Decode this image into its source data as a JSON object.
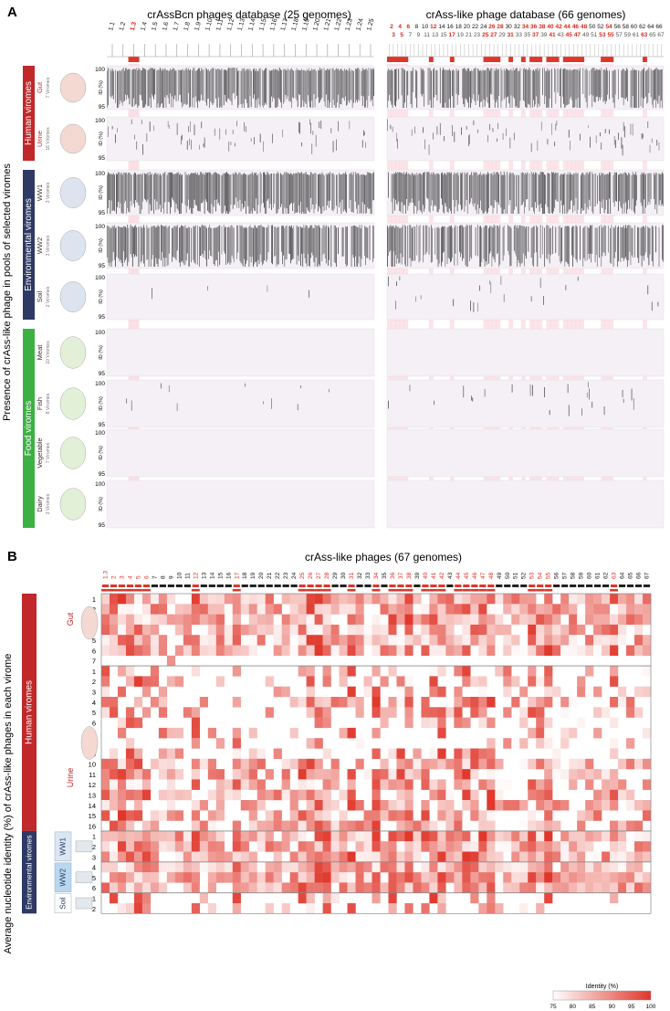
{
  "panel_a": {
    "label": "A",
    "y_axis_title": "Presence of crAss-like phage in pools of selected viromes",
    "db1_title": "crAssBcn phages database (25 genomes)",
    "db2_title": "crAss-like phage database (66 genomes)",
    "db1_labels": [
      "1.1",
      "1.2",
      "1.3",
      "1.4",
      "1.5",
      "1.6",
      "1.7",
      "1.8",
      "1.9",
      "1.10",
      "1.11",
      "1.12",
      "1.13",
      "1.14",
      "1.15",
      "1.16",
      "1.17",
      "1.18",
      "1.19",
      "1.20",
      "1.21",
      "1.22",
      "1.23",
      "1.24",
      "1.25"
    ],
    "db1_highlight_index": 2,
    "db2_top_labels": [
      "2",
      "4",
      "6",
      "8",
      "10",
      "12",
      "14",
      "16",
      "18",
      "20",
      "22",
      "24",
      "26",
      "28",
      "30",
      "32",
      "34",
      "36",
      "38",
      "40",
      "42",
      "44",
      "46",
      "48",
      "50",
      "52",
      "54",
      "56",
      "58",
      "60",
      "62",
      "64",
      "66"
    ],
    "db2_bottom_labels": [
      "3",
      "5",
      "7",
      "9",
      "11",
      "13",
      "15",
      "17",
      "19",
      "21",
      "23",
      "25",
      "27",
      "29",
      "31",
      "33",
      "35",
      "37",
      "39",
      "41",
      "43",
      "45",
      "47",
      "49",
      "51",
      "53",
      "55",
      "57",
      "59",
      "61",
      "63",
      "65",
      "67"
    ],
    "db2_highlighted": [
      "2",
      "3",
      "4",
      "5",
      "6",
      "12",
      "17",
      "25",
      "26",
      "27",
      "28",
      "31",
      "34",
      "36",
      "37",
      "38",
      "40",
      "41",
      "42",
      "44",
      "45",
      "46",
      "47",
      "48",
      "53",
      "54",
      "55",
      "63"
    ],
    "groups": [
      {
        "name": "Human viromes",
        "color": "#c0282a"
      },
      {
        "name": "Environmental viromes",
        "color": "#2e3a63"
      },
      {
        "name": "Food viromes",
        "color": "#3db044"
      }
    ],
    "rows": [
      {
        "name": "Gut",
        "n": "7 Viromes",
        "group": 0,
        "density": 0.9
      },
      {
        "name": "Urine",
        "n": "16 Viromes",
        "group": 0,
        "density": 0.25
      },
      {
        "name": "WW1",
        "n": "3 Viromes",
        "group": 1,
        "density": 0.92
      },
      {
        "name": "WW2",
        "n": "3 Viromes",
        "group": 1,
        "density": 0.8
      },
      {
        "name": "Soil",
        "n": "2 Viromes",
        "group": 1,
        "density": 0.02
      },
      {
        "name": "Meat",
        "n": "10 Viromes",
        "group": 2,
        "density": 0.0
      },
      {
        "name": "Fish",
        "n": "8 Viromes",
        "group": 2,
        "density": 0.03
      },
      {
        "name": "Vegetable",
        "n": "7 Viromes",
        "group": 2,
        "density": 0.0
      },
      {
        "name": "Dairy",
        "n": "3 Viromes",
        "group": 2,
        "density": 0.0
      }
    ],
    "y_ticks": [
      "100",
      "95"
    ],
    "y_unit": "ID (%)"
  },
  "panel_b": {
    "label": "B",
    "title": "crAss-like phages (67 genomes)",
    "y_axis_title": "Average nucleotide identity (%) of crAss-like phages in each virome",
    "columns": [
      "1.3",
      "2",
      "3",
      "4",
      "5",
      "6",
      "7",
      "8",
      "9",
      "10",
      "11",
      "12",
      "13",
      "14",
      "15",
      "16",
      "17",
      "18",
      "19",
      "20",
      "21",
      "22",
      "23",
      "24",
      "25",
      "26",
      "27",
      "28",
      "29",
      "30",
      "31",
      "32",
      "33",
      "34",
      "35",
      "36",
      "37",
      "38",
      "39",
      "40",
      "41",
      "42",
      "43",
      "44",
      "45",
      "46",
      "47",
      "48",
      "49",
      "50",
      "51",
      "52",
      "53",
      "54",
      "55",
      "56",
      "57",
      "58",
      "59",
      "60",
      "61",
      "62",
      "63",
      "64",
      "65",
      "66",
      "67"
    ],
    "red_columns": [
      "1.3",
      "2",
      "3",
      "4",
      "5",
      "6",
      "12",
      "17",
      "25",
      "26",
      "27",
      "28",
      "31",
      "34",
      "36",
      "37",
      "38",
      "40",
      "41",
      "42",
      "44",
      "45",
      "46",
      "47",
      "48",
      "53",
      "54",
      "55",
      "63"
    ],
    "human_label": "Human viromes",
    "env_label": "Environmental viromes",
    "sections": [
      {
        "name": "Gut",
        "rows": [
          "1",
          "2",
          "3",
          "4",
          "5",
          "6",
          "7"
        ]
      },
      {
        "name": "Urine",
        "rows": [
          "1",
          "2",
          "3",
          "4",
          "5",
          "6",
          "7",
          "8",
          "9",
          "10",
          "11",
          "12",
          "13",
          "14",
          "15",
          "16"
        ]
      },
      {
        "name": "WW1",
        "rows": [
          "1",
          "2",
          "3"
        ]
      },
      {
        "name": "WW2",
        "rows": [
          "4",
          "5",
          "6"
        ]
      },
      {
        "name": "Soil",
        "rows": [
          "1",
          "2"
        ]
      }
    ],
    "legend": {
      "title": "Identity (%)",
      "ticks": [
        "75",
        "80",
        "85",
        "90",
        "95",
        "100"
      ],
      "min": 75,
      "max": 100,
      "color_low": "#ffffff",
      "color_high": "#e0362a"
    }
  }
}
